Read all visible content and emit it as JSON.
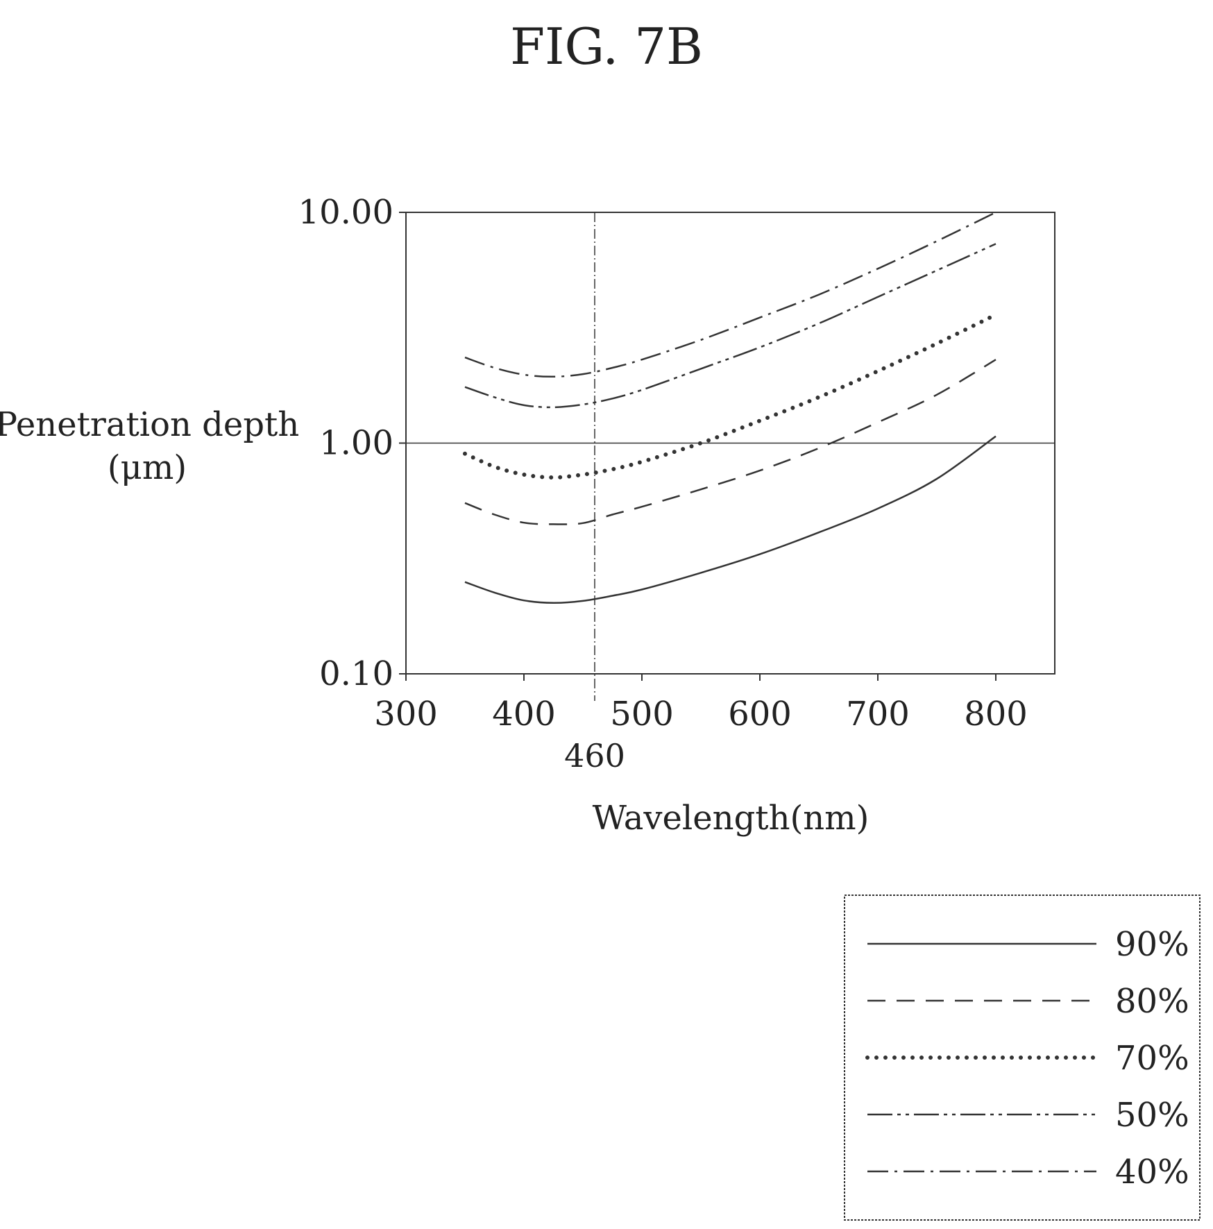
{
  "figure_label": "FIG. 7B",
  "chart_data": {
    "type": "line",
    "title": "",
    "xlabel": "Wavelength(nm)",
    "ylabel_line1": "Penetration depth",
    "ylabel_line2": "(μm)",
    "xlim": [
      300,
      850
    ],
    "ylim": [
      0.1,
      10
    ],
    "yscale": "log",
    "x_ticks": [
      300,
      400,
      500,
      600,
      700,
      800
    ],
    "x_tick_labels": [
      "300",
      "400",
      "500",
      "600",
      "700",
      "800"
    ],
    "y_ticks": [
      0.1,
      1,
      10
    ],
    "y_tick_labels": [
      "0.10",
      "1.00",
      "10.00"
    ],
    "reference_lines": {
      "vertical_x": 460,
      "vertical_label": "460",
      "horizontal_y": 1.0
    },
    "grid": false,
    "legend_position": "bottom-right, outside plot",
    "series": [
      {
        "name": "90%",
        "style": "solid",
        "x": [
          350,
          375,
          400,
          425,
          450,
          475,
          500,
          550,
          600,
          650,
          700,
          750,
          800
        ],
        "y": [
          0.25,
          0.225,
          0.208,
          0.203,
          0.207,
          0.218,
          0.232,
          0.274,
          0.33,
          0.41,
          0.52,
          0.7,
          1.07
        ]
      },
      {
        "name": "80%",
        "style": "dashed",
        "x": [
          350,
          375,
          400,
          425,
          450,
          475,
          500,
          550,
          600,
          650,
          700,
          750,
          800
        ],
        "y": [
          0.55,
          0.49,
          0.452,
          0.445,
          0.45,
          0.49,
          0.53,
          0.63,
          0.76,
          0.95,
          1.23,
          1.62,
          2.3
        ]
      },
      {
        "name": "70%",
        "style": "dotted",
        "x": [
          350,
          375,
          400,
          425,
          450,
          475,
          500,
          550,
          600,
          650,
          700,
          750,
          800
        ],
        "y": [
          0.9,
          0.79,
          0.73,
          0.71,
          0.73,
          0.77,
          0.83,
          1.0,
          1.25,
          1.58,
          2.05,
          2.7,
          3.6
        ]
      },
      {
        "name": "50%",
        "style": "dash-dot-dot",
        "x": [
          350,
          375,
          400,
          425,
          450,
          475,
          500,
          550,
          600,
          650,
          700,
          750,
          800
        ],
        "y": [
          1.75,
          1.58,
          1.46,
          1.43,
          1.47,
          1.56,
          1.7,
          2.1,
          2.6,
          3.3,
          4.3,
          5.6,
          7.3
        ]
      },
      {
        "name": "40%",
        "style": "dash-dot",
        "x": [
          350,
          375,
          400,
          425,
          450,
          475,
          500,
          550,
          600,
          650,
          700,
          750,
          800
        ],
        "y": [
          2.35,
          2.12,
          1.98,
          1.94,
          1.99,
          2.12,
          2.3,
          2.8,
          3.5,
          4.4,
          5.7,
          7.5,
          10.0
        ]
      }
    ]
  }
}
